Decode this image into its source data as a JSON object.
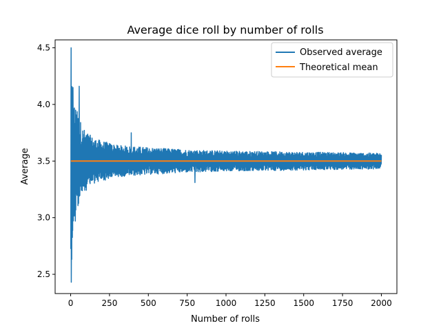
{
  "chart_data": {
    "type": "line",
    "title": "Average dice roll by number of rolls",
    "xlabel": "Number of rolls",
    "ylabel": "Average",
    "xlim": [
      -100,
      2100
    ],
    "ylim": [
      2.33,
      4.57
    ],
    "xticks": [
      0,
      250,
      500,
      750,
      1000,
      1250,
      1500,
      1750,
      2000
    ],
    "xtick_labels": [
      "0",
      "250",
      "500",
      "750",
      "1000",
      "1250",
      "1500",
      "1750",
      "2000"
    ],
    "yticks": [
      2.5,
      3.0,
      3.5,
      4.0,
      4.5
    ],
    "ytick_labels": [
      "2.5",
      "3.0",
      "3.5",
      "4.0",
      "4.5"
    ],
    "grid": false,
    "legend_position": "top-right",
    "series": [
      {
        "name": "Observed average",
        "color": "#1f77b4",
        "x_range": [
          1,
          2000
        ],
        "mean": 3.5,
        "envelope_samples": [
          [
            1,
            1.0
          ],
          [
            3,
            0.99
          ],
          [
            5,
            0.95
          ],
          [
            10,
            0.75
          ],
          [
            20,
            0.55
          ],
          [
            30,
            0.48
          ],
          [
            50,
            0.42
          ],
          [
            75,
            0.3
          ],
          [
            100,
            0.26
          ],
          [
            150,
            0.2
          ],
          [
            200,
            0.18
          ],
          [
            300,
            0.14
          ],
          [
            400,
            0.13
          ],
          [
            500,
            0.12
          ],
          [
            750,
            0.1
          ],
          [
            1000,
            0.09
          ],
          [
            1500,
            0.08
          ],
          [
            2000,
            0.07
          ]
        ],
        "notable_values": [
          {
            "x": 3,
            "y": 4.5
          },
          {
            "x": 4,
            "y": 2.43
          },
          {
            "x": 6,
            "y": 2.73
          },
          {
            "x": 15,
            "y": 4.15
          },
          {
            "x": 30,
            "y": 2.97
          },
          {
            "x": 55,
            "y": 4.16
          },
          {
            "x": 390,
            "y": 3.75
          },
          {
            "x": 800,
            "y": 3.31
          }
        ]
      },
      {
        "name": "Theoretical mean",
        "color": "#ff7f0e",
        "x": [
          1,
          2000
        ],
        "y": [
          3.5,
          3.5
        ]
      }
    ]
  }
}
